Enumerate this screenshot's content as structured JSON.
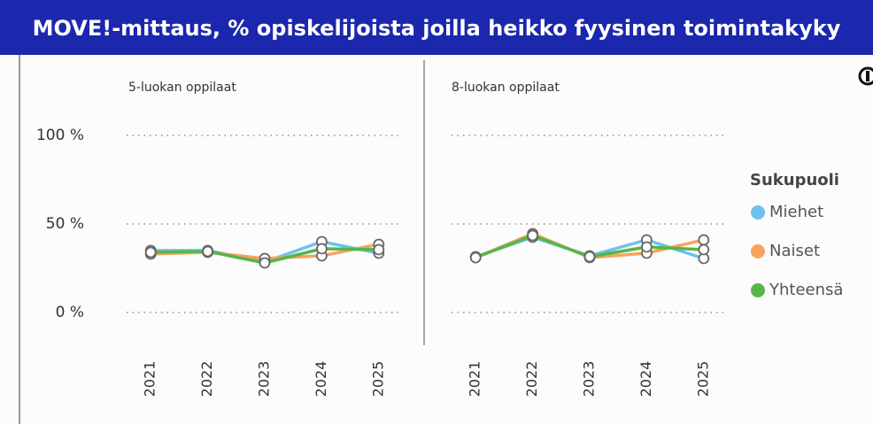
{
  "header": {
    "title": "MOVE!-mittaus, % opiskelijoista joilla heikko fyysinen toimintakyky"
  },
  "legend": {
    "title": "Sukupuoli"
  },
  "chart_data": [
    {
      "type": "line",
      "subtitle": "5-luokan oppilaat",
      "categories": [
        "2021",
        "2022",
        "2023",
        "2024",
        "2025"
      ],
      "ylim": [
        0,
        100
      ],
      "yticks": [
        {
          "value": 0,
          "label": "0 %"
        },
        {
          "value": 50,
          "label": "50 %"
        },
        {
          "value": 100,
          "label": "100 %"
        }
      ],
      "grid": true,
      "series": [
        {
          "name": "Miehet",
          "color": "#6cc2ec",
          "values": [
            35,
            35,
            28.5,
            40,
            33.5
          ]
        },
        {
          "name": "Naiset",
          "color": "#f7a35c",
          "values": [
            33,
            34,
            30.5,
            32,
            38.5
          ]
        },
        {
          "name": "Yhteensä",
          "color": "#56b648",
          "values": [
            34,
            34.5,
            28,
            36,
            35.5
          ]
        }
      ]
    },
    {
      "type": "line",
      "subtitle": "8-luokan oppilaat",
      "categories": [
        "2021",
        "2022",
        "2023",
        "2024",
        "2025"
      ],
      "ylim": [
        0,
        100
      ],
      "grid": true,
      "series": [
        {
          "name": "Miehet",
          "color": "#6cc2ec",
          "values": [
            31.5,
            42.5,
            32,
            41,
            30.5
          ]
        },
        {
          "name": "Naiset",
          "color": "#f7a35c",
          "values": [
            31,
            44.5,
            31,
            33.5,
            41
          ]
        },
        {
          "name": "Yhteensä",
          "color": "#56b648",
          "values": [
            31,
            43.5,
            31.5,
            37,
            35.5
          ]
        }
      ]
    }
  ]
}
